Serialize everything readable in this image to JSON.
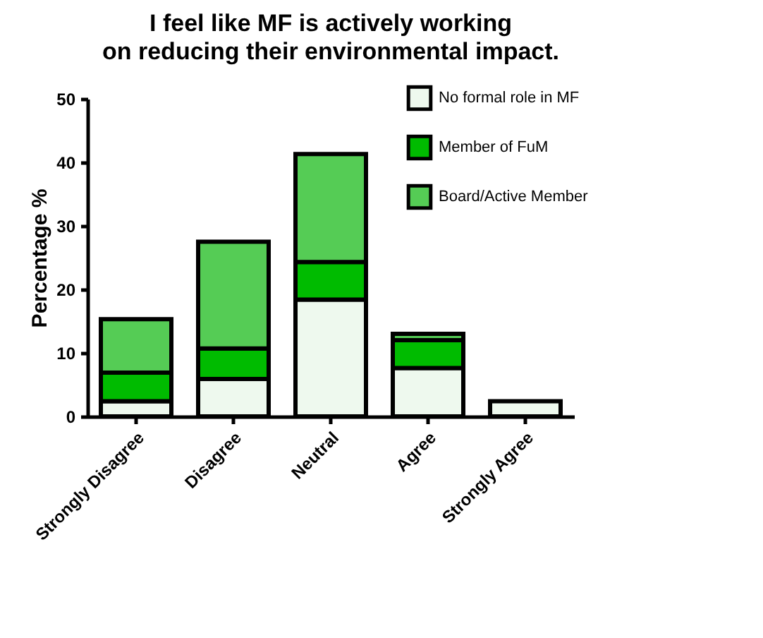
{
  "chart_data": {
    "type": "bar",
    "title": "I feel like MF is actively working on reducing their environmental impact.",
    "ylabel": "Percentage %",
    "categories": [
      "Strongly Disagree",
      "Disagree",
      "Neutral",
      "Agree",
      "Strongly Agree"
    ],
    "stacked": true,
    "series": [
      {
        "name": "No formal role in MF",
        "color": "#eef9ee",
        "values": [
          2.4,
          5.9,
          18.4,
          7.6,
          2.4
        ]
      },
      {
        "name": "Member of FuM",
        "color": "#00bb00",
        "values": [
          4.5,
          4.8,
          5.9,
          4.4,
          null
        ]
      },
      {
        "name": "Board/Active Member",
        "color": "#55cc55",
        "values": [
          8.4,
          16.8,
          17.0,
          1.0,
          null
        ]
      }
    ],
    "ylim": [
      0,
      50
    ],
    "yticks": [
      0,
      10,
      20,
      30,
      40,
      50
    ],
    "grid": false,
    "legend": "top right"
  }
}
